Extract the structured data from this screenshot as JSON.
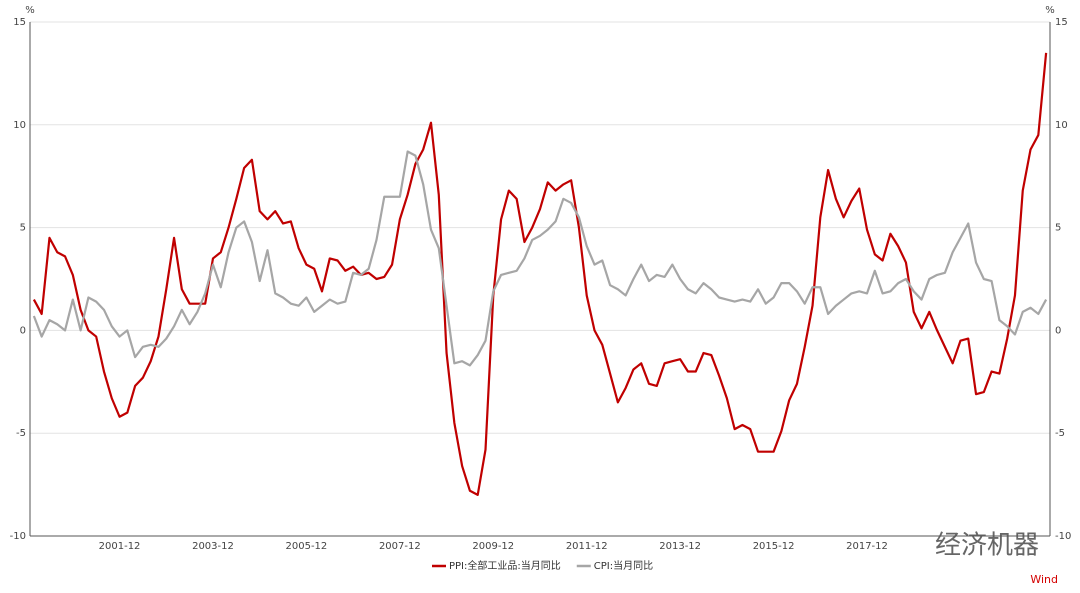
{
  "chart_data": {
    "type": "line",
    "ylabel": "%",
    "y2label": "%",
    "categories": [
      null,
      null,
      null,
      null,
      null,
      null,
      null,
      null,
      null,
      null,
      null,
      "2001-12",
      null,
      null,
      null,
      null,
      null,
      null,
      null,
      null,
      null,
      null,
      null,
      "2003-12",
      null,
      null,
      null,
      null,
      null,
      null,
      null,
      null,
      null,
      null,
      null,
      "2005-12",
      null,
      null,
      null,
      null,
      null,
      null,
      null,
      null,
      null,
      null,
      null,
      "2007-12",
      null,
      null,
      null,
      null,
      null,
      null,
      null,
      null,
      null,
      null,
      null,
      "2009-12",
      null,
      null,
      null,
      null,
      null,
      null,
      null,
      null,
      null,
      null,
      null,
      "2011-12",
      null,
      null,
      null,
      null,
      null,
      null,
      null,
      null,
      null,
      null,
      null,
      "2013-12",
      null,
      null,
      null,
      null,
      null,
      null,
      null,
      null,
      null,
      null,
      null,
      "2015-12",
      null,
      null,
      null,
      null,
      null,
      null,
      null,
      null,
      null,
      null,
      null,
      "2017-12",
      null,
      null,
      null,
      null,
      null,
      null,
      null,
      null,
      null,
      null,
      null,
      null,
      null,
      null,
      null,
      null,
      null,
      null,
      null,
      null,
      null,
      null,
      null
    ],
    "series": [
      {
        "name": "PPI:全部工业品:当月同比",
        "color": "#c00000",
        "axis": "y",
        "values": [
          1.5,
          0.8,
          4.5,
          3.8,
          3.6,
          2.7,
          1.0,
          0.0,
          -0.3,
          -2.0,
          -3.3,
          -4.2,
          -4.0,
          -2.7,
          -2.3,
          -1.5,
          -0.3,
          2.0,
          4.5,
          2.0,
          1.3,
          1.3,
          1.3,
          3.5,
          3.8,
          5.0,
          6.4,
          7.9,
          8.3,
          5.8,
          5.4,
          5.8,
          5.2,
          5.3,
          4.0,
          3.2,
          3.0,
          1.9,
          3.5,
          3.4,
          2.9,
          3.1,
          2.7,
          2.8,
          2.5,
          2.6,
          3.2,
          5.4,
          6.6,
          8.1,
          8.8,
          10.1,
          6.6,
          -1.1,
          -4.5,
          -6.6,
          -7.8,
          -8.0,
          -5.8,
          1.7,
          5.4,
          6.8,
          6.4,
          4.3,
          5.0,
          5.9,
          7.2,
          6.8,
          7.1,
          7.3,
          5.0,
          1.7,
          0.0,
          -0.7,
          -2.1,
          -3.5,
          -2.8,
          -1.9,
          -1.6,
          -2.6,
          -2.7,
          -1.6,
          -1.5,
          -1.4,
          -2.0,
          -2.0,
          -1.1,
          -1.2,
          -2.2,
          -3.3,
          -4.8,
          -4.6,
          -4.8,
          -5.9,
          -5.9,
          -5.9,
          -4.9,
          -3.4,
          -2.6,
          -0.8,
          1.2,
          5.5,
          7.8,
          6.4,
          5.5,
          6.3,
          6.9,
          4.9,
          3.7,
          3.4,
          4.7,
          4.1,
          3.3,
          0.9,
          0.1,
          0.9,
          0.0,
          -0.8,
          -1.6,
          -0.5,
          -0.4,
          -3.1,
          -3.0,
          -2.0,
          -2.1,
          -0.4,
          1.7,
          6.8,
          8.8,
          9.5,
          13.5
        ]
      },
      {
        "name": "CPI:当月同比",
        "color": "#a6a6a6",
        "axis": "y2",
        "values": [
          0.7,
          -0.3,
          0.5,
          0.3,
          0.0,
          1.5,
          0.0,
          1.6,
          1.4,
          1.0,
          0.2,
          -0.3,
          0.0,
          -1.3,
          -0.8,
          -0.7,
          -0.8,
          -0.4,
          0.2,
          1.0,
          0.3,
          0.9,
          1.8,
          3.2,
          2.1,
          3.8,
          5.0,
          5.3,
          4.3,
          2.4,
          3.9,
          1.8,
          1.6,
          1.3,
          1.2,
          1.6,
          0.9,
          1.2,
          1.5,
          1.3,
          1.4,
          2.8,
          2.7,
          3.0,
          4.4,
          6.5,
          6.5,
          6.5,
          8.7,
          8.5,
          7.1,
          4.9,
          4.0,
          1.2,
          -1.6,
          -1.5,
          -1.7,
          -1.2,
          -0.5,
          1.9,
          2.7,
          2.8,
          2.9,
          3.5,
          4.4,
          4.6,
          4.9,
          5.3,
          6.4,
          6.2,
          5.5,
          4.1,
          3.2,
          3.4,
          2.2,
          2.0,
          1.7,
          2.5,
          3.2,
          2.4,
          2.7,
          2.6,
          3.2,
          2.5,
          2.0,
          1.8,
          2.3,
          2.0,
          1.6,
          1.5,
          1.4,
          1.5,
          1.4,
          2.0,
          1.3,
          1.6,
          2.3,
          2.3,
          1.9,
          1.3,
          2.1,
          2.1,
          0.8,
          1.2,
          1.5,
          1.8,
          1.9,
          1.8,
          2.9,
          1.8,
          1.9,
          2.3,
          2.5,
          1.9,
          1.5,
          2.5,
          2.7,
          2.8,
          3.8,
          4.5,
          5.2,
          3.3,
          2.5,
          2.4,
          0.5,
          0.2,
          -0.2,
          0.9,
          1.1,
          0.8,
          1.5
        ]
      }
    ],
    "ylim": [
      -10,
      15
    ],
    "yticks": [
      -10,
      -5,
      0,
      5,
      10,
      15
    ],
    "y2lim": [
      -10,
      15
    ],
    "y2ticks": [
      -10,
      -5,
      0,
      5,
      10,
      15
    ],
    "grid": true,
    "legend": "bottom",
    "watermark": "经济机器",
    "source": "Wind"
  }
}
